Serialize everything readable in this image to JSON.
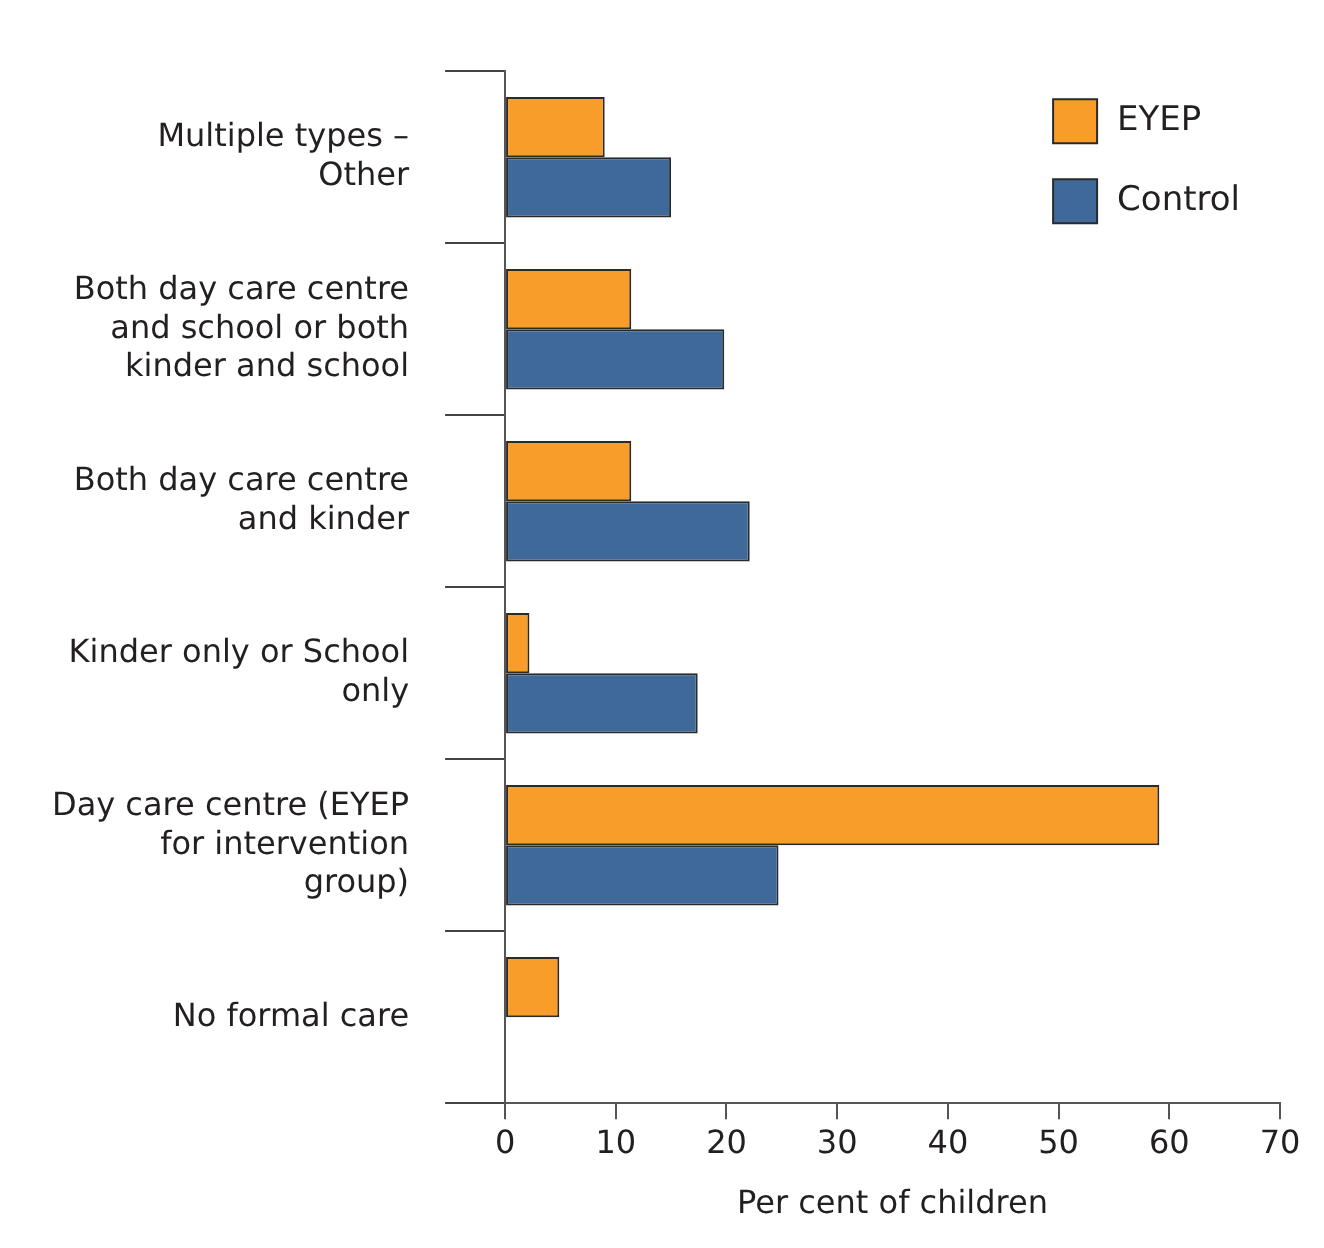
{
  "chart_data": {
    "type": "bar",
    "orientation": "horizontal",
    "xlabel": "Per cent of children",
    "categories": [
      "Multiple types – Other",
      "Both day care centre and school or both kinder and school",
      "Both day care centre and kinder",
      "Kinder only or School only",
      "Day care centre (EYEP for intervention group)",
      "No formal care"
    ],
    "series": [
      {
        "name": "EYEP",
        "color": "#f99d2a",
        "values": [
          9,
          11.4,
          11.4,
          2.2,
          59.1,
          4.9
        ]
      },
      {
        "name": "Control",
        "color": "#3e6998",
        "values": [
          15,
          19.8,
          22.1,
          17.4,
          24.7,
          0
        ]
      }
    ],
    "xlim": [
      0,
      70
    ],
    "xticks": [
      0,
      10,
      20,
      30,
      40,
      50,
      60,
      70
    ],
    "grid": false,
    "legend": "top right"
  }
}
